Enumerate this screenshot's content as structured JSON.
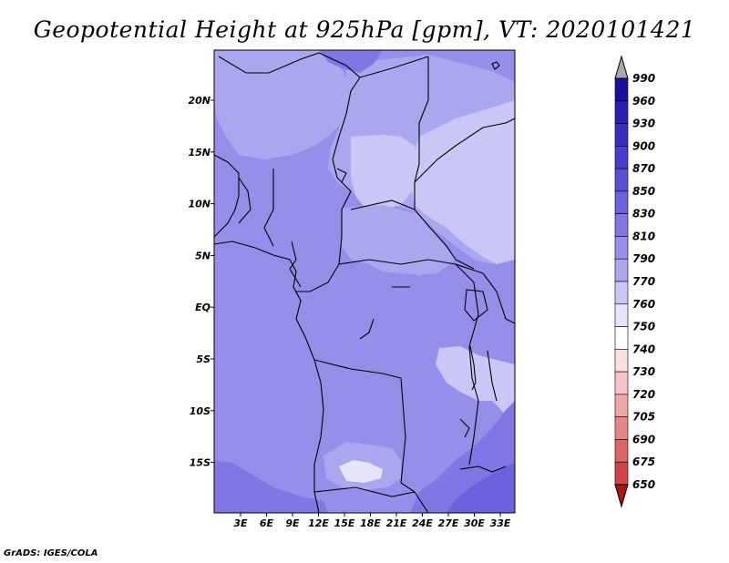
{
  "title": "Geopotential Height at 925hPa [gpm], VT: 2020101421",
  "credit": "GrADS: IGES/COLA",
  "lat_labels": [
    "20N",
    "15N",
    "10N",
    "5N",
    "EQ",
    "5S",
    "10S",
    "15S"
  ],
  "lon_labels": [
    "3E",
    "6E",
    "9E",
    "12E",
    "15E",
    "18E",
    "21E",
    "24E",
    "27E",
    "30E",
    "33E"
  ],
  "colorbar": {
    "levels": [
      "990",
      "960",
      "930",
      "900",
      "870",
      "850",
      "830",
      "810",
      "790",
      "770",
      "760",
      "750",
      "740",
      "730",
      "720",
      "705",
      "690",
      "675",
      "650"
    ],
    "colors": [
      "#1b0fa0",
      "#2a1fb0",
      "#3a2cc0",
      "#4a3dcc",
      "#5b4fd6",
      "#6d62dd",
      "#8077e4",
      "#958fe9",
      "#aba7ee",
      "#c9c7f5",
      "#e6e5fc",
      "#ffffff",
      "#fbe0e0",
      "#f6c4c4",
      "#efa6a6",
      "#e68686",
      "#dc6565",
      "#cf4545",
      "#c02a2a",
      "#a61414"
    ],
    "top_arrow_color": "#a8a8a8",
    "bottom_arrow_color": "#a61414"
  },
  "map": {
    "background_color": "#958fe9",
    "light_region_color": "#aba7ee",
    "lightest_region_color": "#c9c7f5",
    "white_region_color": "#e6e5fc",
    "dark_region_color": "#8077e4",
    "darkest_region_color": "#6d62dd"
  }
}
